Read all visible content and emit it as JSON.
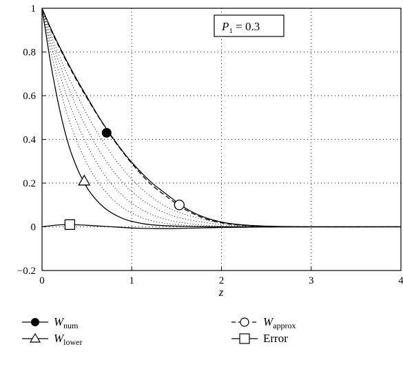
{
  "chart_data": {
    "type": "line",
    "title": "",
    "xlabel": "z",
    "ylabel": "",
    "xlim": [
      0,
      4
    ],
    "ylim": [
      -0.2,
      1
    ],
    "grid": "dotted",
    "x_ticks": [
      "0",
      "1",
      "2",
      "3",
      "4"
    ],
    "y_ticks": [
      "−0.2",
      "0",
      "0.2",
      "0.4",
      "0.6",
      "0.8",
      "1"
    ],
    "annotation": {
      "label": "P",
      "subscript": "1",
      "value": " = 0.3"
    },
    "series": [
      {
        "name": "W_num",
        "label_main": "W",
        "label_sub": "num",
        "marker": "filled-circle",
        "dash": "solid",
        "marker_point": [
          0.72,
          0.43
        ],
        "points": [
          [
            0,
            1
          ],
          [
            0.1,
            0.905
          ],
          [
            0.2,
            0.82
          ],
          [
            0.3,
            0.74
          ],
          [
            0.4,
            0.665
          ],
          [
            0.5,
            0.595
          ],
          [
            0.6,
            0.525
          ],
          [
            0.7,
            0.46
          ],
          [
            0.8,
            0.4
          ],
          [
            0.9,
            0.345
          ],
          [
            1.0,
            0.295
          ],
          [
            1.2,
            0.21
          ],
          [
            1.4,
            0.145
          ],
          [
            1.6,
            0.085
          ],
          [
            1.8,
            0.045
          ],
          [
            2.0,
            0.022
          ],
          [
            2.2,
            0.01
          ],
          [
            2.5,
            0.003
          ],
          [
            3,
            0
          ],
          [
            4,
            0
          ]
        ]
      },
      {
        "name": "W_approx",
        "label_main": "W",
        "label_sub": "approx",
        "marker": "open-circle",
        "dash": "dashed",
        "marker_point": [
          1.53,
          0.1
        ],
        "points": [
          [
            0,
            1
          ],
          [
            0.1,
            0.9
          ],
          [
            0.2,
            0.815
          ],
          [
            0.3,
            0.735
          ],
          [
            0.4,
            0.66
          ],
          [
            0.5,
            0.59
          ],
          [
            0.6,
            0.522
          ],
          [
            0.7,
            0.458
          ],
          [
            0.8,
            0.397
          ],
          [
            0.9,
            0.342
          ],
          [
            1.0,
            0.29
          ],
          [
            1.2,
            0.2
          ],
          [
            1.4,
            0.135
          ],
          [
            1.6,
            0.078
          ],
          [
            1.8,
            0.04
          ],
          [
            2.0,
            0.018
          ],
          [
            2.2,
            0.008
          ],
          [
            2.5,
            0.002
          ],
          [
            3,
            0
          ],
          [
            4,
            0
          ]
        ]
      },
      {
        "name": "W_lower",
        "label_main": "W",
        "label_sub": "lower",
        "marker": "open-triangle",
        "dash": "solid",
        "marker_point": [
          0.47,
          0.21
        ],
        "points": [
          [
            0,
            1
          ],
          [
            0.1,
            0.74
          ],
          [
            0.2,
            0.53
          ],
          [
            0.3,
            0.37
          ],
          [
            0.4,
            0.26
          ],
          [
            0.5,
            0.18
          ],
          [
            0.6,
            0.125
          ],
          [
            0.7,
            0.085
          ],
          [
            0.8,
            0.058
          ],
          [
            0.9,
            0.038
          ],
          [
            1.0,
            0.025
          ],
          [
            1.2,
            0.01
          ],
          [
            1.5,
            0.003
          ],
          [
            2,
            0
          ],
          [
            4,
            0
          ]
        ]
      },
      {
        "name": "Error",
        "label_main": "Error",
        "label_sub": "",
        "marker": "open-square",
        "dash": "solid",
        "marker_point": [
          0.31,
          0.01
        ],
        "points": [
          [
            0,
            0
          ],
          [
            0.1,
            0.005
          ],
          [
            0.2,
            0.009
          ],
          [
            0.3,
            0.01
          ],
          [
            0.4,
            0.009
          ],
          [
            0.5,
            0.007
          ],
          [
            0.7,
            0.002
          ],
          [
            0.9,
            -0.003
          ],
          [
            1.1,
            -0.007
          ],
          [
            1.4,
            -0.008
          ],
          [
            1.7,
            -0.006
          ],
          [
            2.0,
            -0.003
          ],
          [
            2.5,
            -0.001
          ],
          [
            3,
            0
          ],
          [
            4,
            0
          ]
        ]
      }
    ],
    "intermediate_curves": [
      [
        [
          0,
          1
        ],
        [
          0.1,
          0.8
        ],
        [
          0.2,
          0.63
        ],
        [
          0.3,
          0.49
        ],
        [
          0.4,
          0.38
        ],
        [
          0.5,
          0.29
        ],
        [
          0.6,
          0.22
        ],
        [
          0.7,
          0.165
        ],
        [
          0.8,
          0.12
        ],
        [
          0.9,
          0.088
        ],
        [
          1.0,
          0.063
        ],
        [
          1.2,
          0.03
        ],
        [
          1.5,
          0.01
        ],
        [
          2,
          0.001
        ],
        [
          3,
          0
        ]
      ],
      [
        [
          0,
          1
        ],
        [
          0.1,
          0.835
        ],
        [
          0.2,
          0.695
        ],
        [
          0.3,
          0.57
        ],
        [
          0.4,
          0.465
        ],
        [
          0.5,
          0.375
        ],
        [
          0.6,
          0.3
        ],
        [
          0.7,
          0.236
        ],
        [
          0.8,
          0.184
        ],
        [
          0.9,
          0.142
        ],
        [
          1.0,
          0.108
        ],
        [
          1.2,
          0.06
        ],
        [
          1.5,
          0.023
        ],
        [
          2,
          0.003
        ],
        [
          3,
          0
        ]
      ],
      [
        [
          0,
          1
        ],
        [
          0.1,
          0.86
        ],
        [
          0.2,
          0.74
        ],
        [
          0.3,
          0.63
        ],
        [
          0.4,
          0.535
        ],
        [
          0.5,
          0.45
        ],
        [
          0.6,
          0.375
        ],
        [
          0.7,
          0.31
        ],
        [
          0.8,
          0.252
        ],
        [
          0.9,
          0.203
        ],
        [
          1.0,
          0.162
        ],
        [
          1.2,
          0.1
        ],
        [
          1.5,
          0.045
        ],
        [
          2,
          0.01
        ],
        [
          2.5,
          0.002
        ],
        [
          3,
          0
        ]
      ],
      [
        [
          0,
          1
        ],
        [
          0.1,
          0.88
        ],
        [
          0.2,
          0.775
        ],
        [
          0.3,
          0.68
        ],
        [
          0.4,
          0.595
        ],
        [
          0.5,
          0.515
        ],
        [
          0.6,
          0.443
        ],
        [
          0.7,
          0.378
        ],
        [
          0.8,
          0.318
        ],
        [
          0.9,
          0.265
        ],
        [
          1.0,
          0.218
        ],
        [
          1.2,
          0.143
        ],
        [
          1.5,
          0.07
        ],
        [
          2,
          0.017
        ],
        [
          2.5,
          0.003
        ],
        [
          3,
          0
        ]
      ]
    ]
  }
}
